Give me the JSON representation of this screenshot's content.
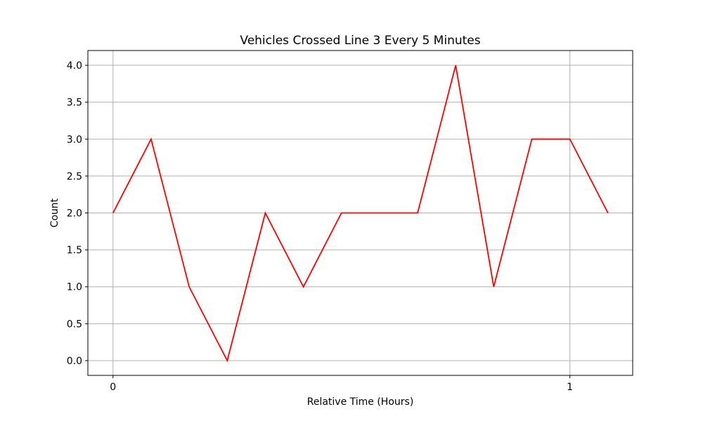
{
  "chart_data": {
    "type": "line",
    "title": "Vehicles Crossed Line 3 Every 5 Minutes",
    "xlabel": "Relative Time (Hours)",
    "ylabel": "Count",
    "x": [
      0,
      0.0833,
      0.1667,
      0.25,
      0.3333,
      0.4167,
      0.5,
      0.5833,
      0.6667,
      0.75,
      0.8333,
      0.9167,
      1.0,
      1.0833
    ],
    "series": [
      {
        "values": [
          2,
          3,
          1,
          0,
          2,
          1,
          2,
          2,
          2,
          4,
          1,
          3,
          3,
          2
        ],
        "color": "#ff0000"
      }
    ],
    "xlim": [
      -0.055,
      1.1375
    ],
    "ylim": [
      -0.2,
      4.2
    ],
    "xticks": [
      0,
      1
    ],
    "xtick_labels": [
      "0",
      "1"
    ],
    "yticks": [
      0,
      0.5,
      1,
      1.5,
      2,
      2.5,
      3,
      3.5,
      4
    ],
    "ytick_labels": [
      "0.0",
      "0.5",
      "1.0",
      "1.5",
      "2.0",
      "2.5",
      "3.0",
      "3.5",
      "4.0"
    ],
    "grid": true,
    "grid_color": "#b0b0b0"
  }
}
